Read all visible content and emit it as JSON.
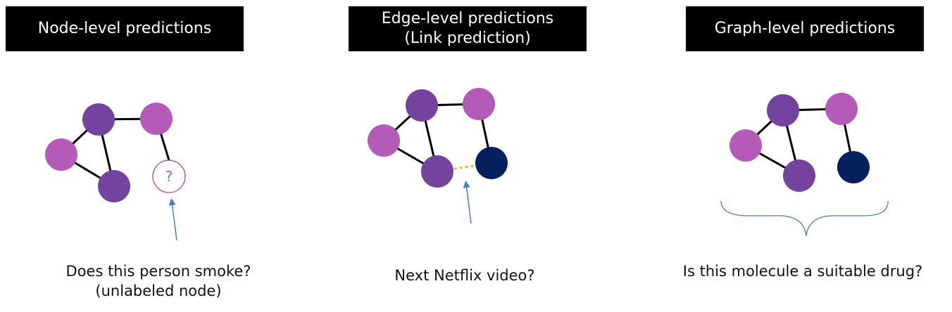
{
  "colors": {
    "dark_purple": "#7443A0",
    "light_purple": "#B45BB9",
    "navy": "#03215E",
    "edge": "#000000",
    "predicted_edge": "#F0B429",
    "arrow": "#4A7DBF",
    "header_bg": "#000000",
    "header_text": "#FFFFFF"
  },
  "panels": {
    "node": {
      "title": "Node-level predictions",
      "unknown_symbol": "?",
      "caption_line1": "Does this person smoke?",
      "caption_line2": "(unlabeled node)"
    },
    "edge": {
      "title_line1": "Edge-level predictions",
      "title_line2": "(Link prediction)",
      "caption": "Next Netflix video?"
    },
    "graph": {
      "title": "Graph-level predictions",
      "caption": "Is this molecule a suitable drug?"
    }
  }
}
